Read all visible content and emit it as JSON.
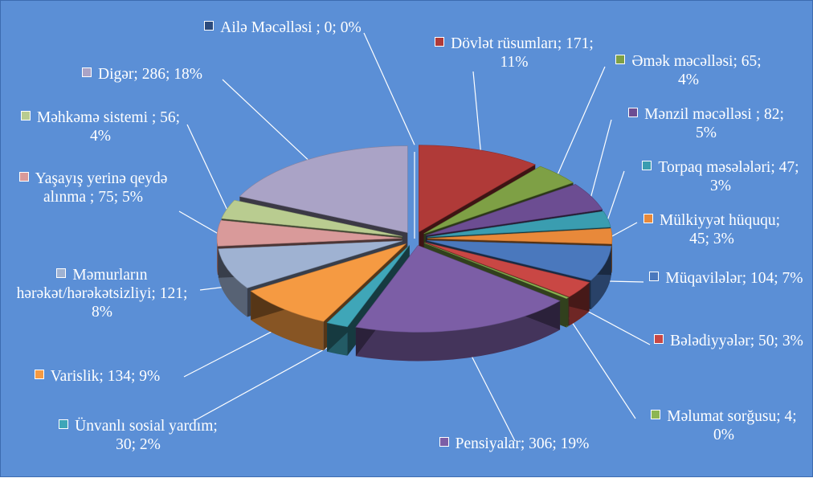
{
  "chart_data": {
    "type": "pie",
    "title": "",
    "slices": [
      {
        "label": "Ailə Məcəlləsi ; 0; 0%",
        "value": 0,
        "color": "#2b4a7c"
      },
      {
        "label": "Dövlət rüsumları; 171; 11%",
        "value": 171,
        "color": "#b03a38"
      },
      {
        "label": "Əmək məcəlləsi; 65; 4%",
        "value": 65,
        "color": "#7ea045"
      },
      {
        "label": "Mənzil məcəlləsi ; 82; 5%",
        "value": 82,
        "color": "#6c4d92"
      },
      {
        "label": "Torpaq məsələləri; 47; 3%",
        "value": 47,
        "color": "#3a9db0"
      },
      {
        "label": "Mülkiyyət hüququ; 45; 3%",
        "value": 45,
        "color": "#e8893a"
      },
      {
        "label": "Müqavilələr; 104; 7%",
        "value": 104,
        "color": "#4a78bd"
      },
      {
        "label": "Bələdiyyələr; 50; 3%",
        "value": 50,
        "color": "#c94744"
      },
      {
        "label": "Məlumat sorğusu; 4; 0%",
        "value": 4,
        "color": "#8db653"
      },
      {
        "label": "Pensiyalar; 306; 19%",
        "value": 306,
        "color": "#7c5ea6"
      },
      {
        "label": "Ünvanlı sosial yardım; 30; 2%",
        "value": 30,
        "color": "#3fa6b8"
      },
      {
        "label": "Varislik; 134; 9%",
        "value": 134,
        "color": "#f59a42"
      },
      {
        "label": "Məmurların hərəkət/hərəkətsizliyi; 121; 8%",
        "value": 121,
        "color": "#9fb2d2"
      },
      {
        "label": "Yaşayış yerinə qeydə alınma ; 75; 5%",
        "value": 75,
        "color": "#d99a9a"
      },
      {
        "label": "Məhkəmə sistemi ; 56; 4%",
        "value": 56,
        "color": "#b9cc90"
      },
      {
        "label": "Digər; 286; 18%",
        "value": 286,
        "color": "#aaa3c6"
      }
    ]
  }
}
